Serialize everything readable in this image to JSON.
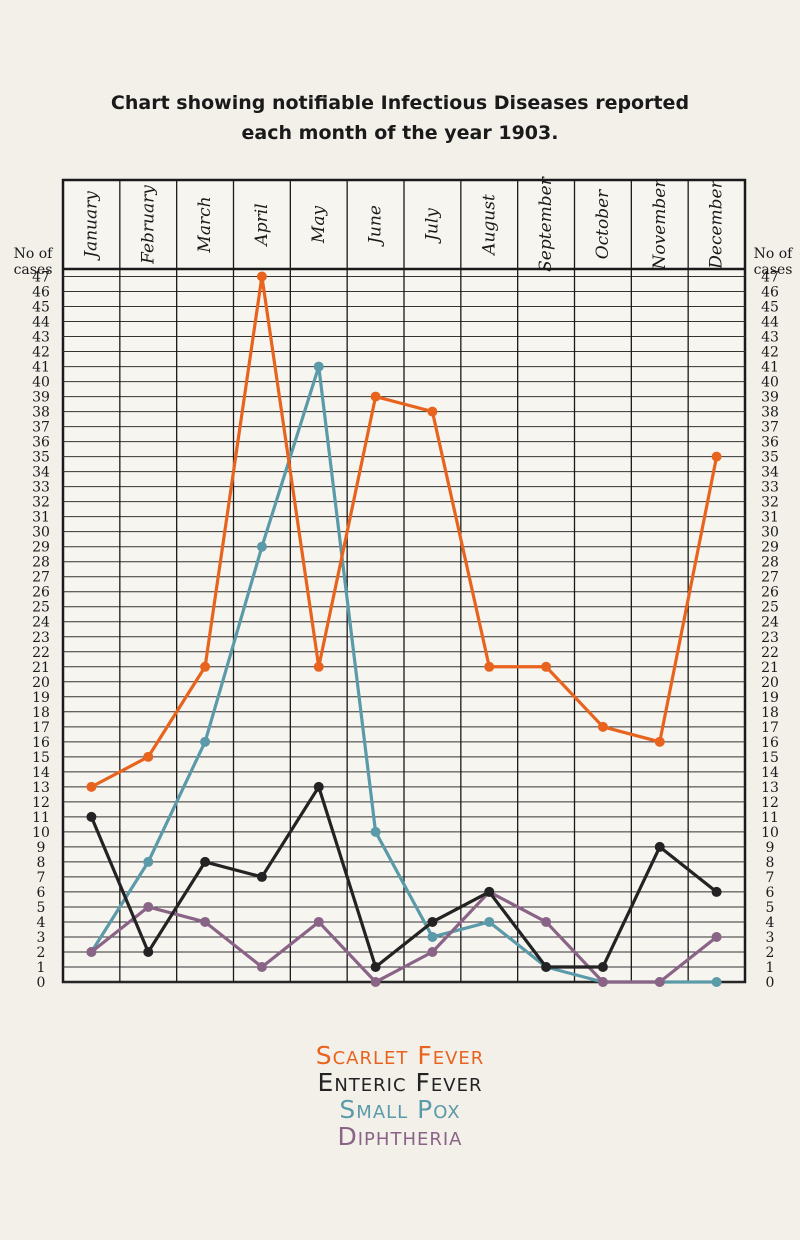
{
  "title": {
    "line1": "Chart showing notifiable Infectious Diseases reported",
    "line2": "each month of the year 1903."
  },
  "chart_data": {
    "type": "line",
    "title": "Chart showing notifiable Infectious Diseases reported each month of the year 1903.",
    "xlabel": "",
    "ylabel": "No of cases",
    "ylim": [
      0,
      47
    ],
    "grid": true,
    "legend_placement": "bottom",
    "categories": [
      "January",
      "February",
      "March",
      "April",
      "May",
      "June",
      "July",
      "August",
      "September",
      "October",
      "November",
      "December"
    ],
    "series": [
      {
        "name": "Scarlet Fever",
        "color": "#e8641e",
        "values": [
          13,
          15,
          21,
          47,
          21,
          39,
          38,
          21,
          21,
          17,
          16,
          35
        ]
      },
      {
        "name": "Enteric Fever",
        "color": "#232323",
        "values": [
          11,
          2,
          8,
          7,
          13,
          1,
          4,
          6,
          1,
          1,
          9,
          6
        ]
      },
      {
        "name": "Small Pox",
        "color": "#5b9aa8",
        "values": [
          2,
          8,
          16,
          29,
          41,
          10,
          3,
          4,
          1,
          0,
          0,
          0
        ]
      },
      {
        "name": "Diphtheria",
        "color": "#8a6486",
        "values": [
          2,
          5,
          4,
          1,
          4,
          0,
          2,
          6,
          4,
          0,
          0,
          3
        ]
      }
    ]
  }
}
